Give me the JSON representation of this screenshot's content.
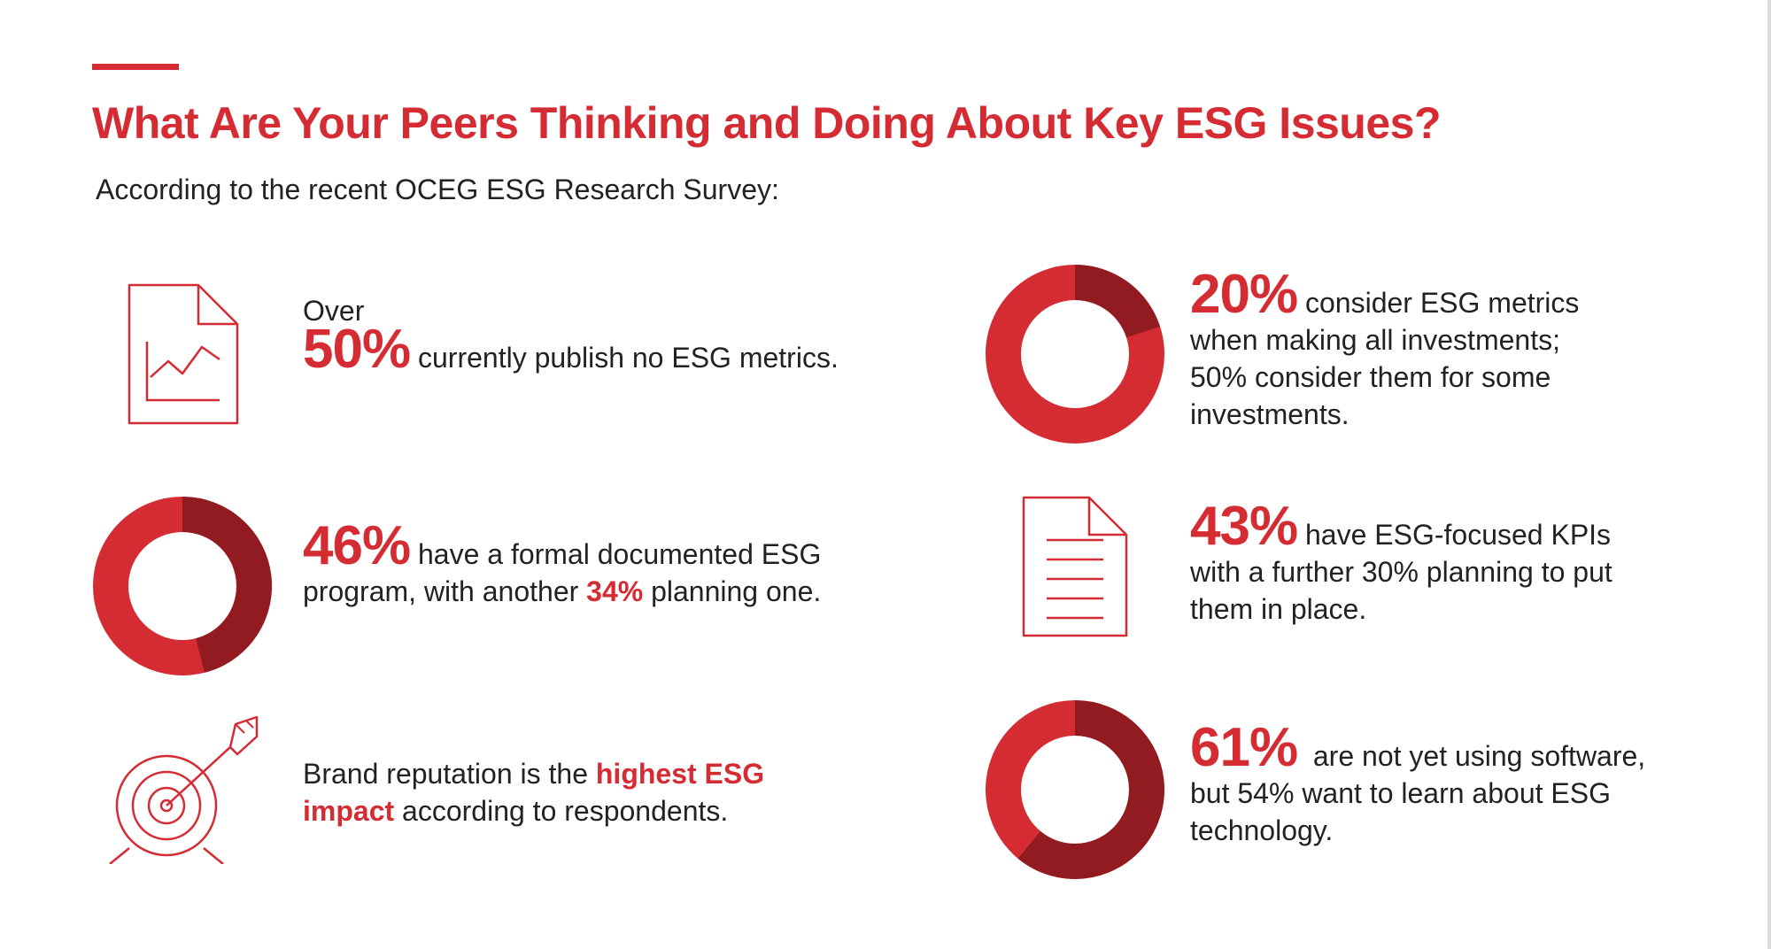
{
  "header": {
    "title": "What Are Your Peers Thinking and Doing About Key ESG Issues?",
    "subtitle": "According to the recent OCEG ESG Research Survey:"
  },
  "colors": {
    "accent": "#d52b33",
    "accent_dark": "#921b21",
    "text": "#222222"
  },
  "stats": {
    "publish": {
      "icon": "document-chart-icon",
      "prefix": "Over",
      "big": "50%",
      "text": " currently publish no ESG metrics."
    },
    "program": {
      "icon": "donut-chart-icon",
      "value_fraction": 0.46,
      "big": "46%",
      "text1": " have a formal documented ESG",
      "text2a": "program, with another ",
      "text2b": "34%",
      "text2c": " planning one."
    },
    "brand": {
      "icon": "target-arrow-icon",
      "text1a": "Brand reputation is the ",
      "text1b": "highest ESG",
      "text2a": "impact",
      "text2b": " according to respondents."
    },
    "investments": {
      "icon": "donut-chart-icon",
      "value_fraction": 0.2,
      "big": "20%",
      "text1": " consider ESG metrics",
      "text2": "when making all investments;",
      "text3": "50% consider them for some",
      "text4": "investments."
    },
    "kpis": {
      "icon": "document-lines-icon",
      "big": "43%",
      "text1": " have ESG-focused KPIs",
      "text2": "with a further 30% planning to put",
      "text3": "them in place."
    },
    "software": {
      "icon": "donut-chart-icon",
      "value_fraction": 0.61,
      "big": "61%",
      "text1": "  are not yet using software,",
      "text2": "but 54% want to learn about ESG",
      "text3": "technology."
    }
  }
}
